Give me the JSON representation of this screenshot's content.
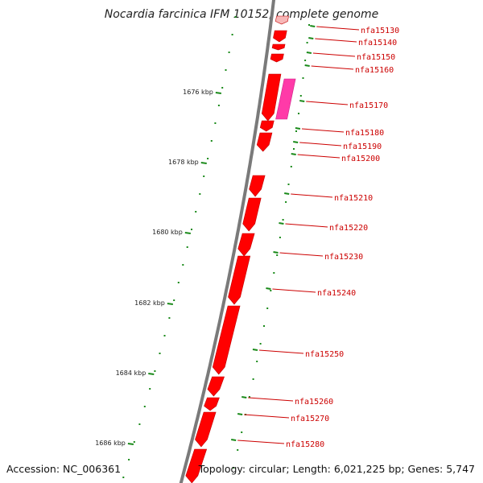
{
  "title": "Nocardia farcinica IFM 10152, complete genome",
  "footer": {
    "accession": "Accession: NC_006361",
    "topology": "Topology: circular; Length: 6,021,225 bp; Genes: 5,747"
  },
  "scale_labels": [
    "1676 kbp",
    "1678 kbp",
    "1680 kbp",
    "1682 kbp",
    "1684 kbp",
    "1686 kbp"
  ],
  "gene_labels": [
    "nfa15130",
    "nfa15140",
    "nfa15150",
    "nfa15160",
    "nfa15170",
    "nfa15180",
    "nfa15190",
    "nfa15200",
    "nfa15210",
    "nfa15220",
    "nfa15230",
    "nfa15240",
    "nfa15250",
    "nfa15260",
    "nfa15270",
    "nfa15280"
  ],
  "colors": {
    "backbone": "#7a7a7a",
    "gene": "#ff0000",
    "gene_dark": "#c00000",
    "gene_highlight": "#ff3aa8",
    "gene_faint": "#f7b7b7",
    "label": "#cc0000",
    "ticks": "#1a8a1a"
  }
}
